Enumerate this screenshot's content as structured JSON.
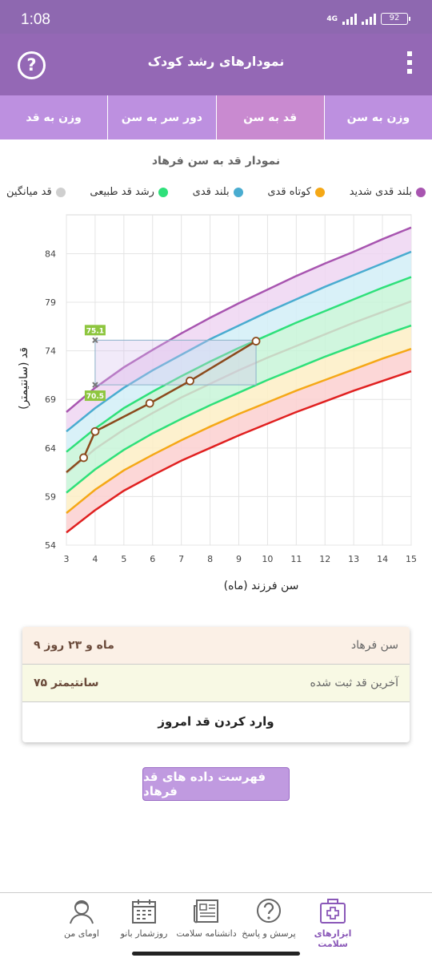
{
  "status_bar": {
    "time": "1:08",
    "network": "4G",
    "battery": "92"
  },
  "app_bar": {
    "title": "نمودارهای رشد کودک",
    "help_icon": "help-circle-icon",
    "menu_icon": "more-vertical-icon"
  },
  "tabs": [
    {
      "label": "وزن به سن",
      "active": false
    },
    {
      "label": "قد به سن",
      "active": true
    },
    {
      "label": "دور سر به سن",
      "active": false
    },
    {
      "label": "وزن به قد",
      "active": false
    }
  ],
  "legend": [
    {
      "label": "بلند قدی شدید",
      "color": "#a855b0"
    },
    {
      "label": "کوتاه قدی",
      "color": "#f5a816"
    },
    {
      "label": "بلند قدی",
      "color": "#49acd0"
    },
    {
      "label": "رشد قد طبیعی",
      "color": "#2ee07a"
    },
    {
      "label": "قد میانگین",
      "color": "#cfcfcf"
    }
  ],
  "chart_data": {
    "type": "line",
    "title": "نمودار قد به سن فرهاد",
    "xlabel": "سن فرزند (ماه)",
    "ylabel": "قد (سانتیمتر)",
    "xlim": [
      3,
      15
    ],
    "ylim": [
      54,
      88
    ],
    "x_ticks": [
      "3",
      "4",
      "5",
      "6",
      "7",
      "8",
      "9",
      "10",
      "11",
      "12",
      "13",
      "14",
      "15"
    ],
    "y_ticks": [
      "54",
      "59",
      "64",
      "69",
      "74",
      "79",
      "84"
    ],
    "grid": true,
    "reference_curves": [
      {
        "name": "+3SD",
        "color": "#a855b0",
        "values": [
          67.7,
          70.2,
          72.3,
          74.1,
          75.8,
          77.4,
          78.9,
          80.3,
          81.7,
          83.0,
          84.2,
          85.5,
          86.7
        ]
      },
      {
        "name": "+2SD",
        "color": "#49acd0",
        "values": [
          65.7,
          68.1,
          70.2,
          72.0,
          73.6,
          75.2,
          76.6,
          78.0,
          79.3,
          80.6,
          81.8,
          83.0,
          84.2
        ]
      },
      {
        "name": "+1SD",
        "color": "#2ee07a",
        "values": [
          63.6,
          66.0,
          68.1,
          69.8,
          71.4,
          72.9,
          74.3,
          75.6,
          76.9,
          78.1,
          79.3,
          80.5,
          81.6
        ]
      },
      {
        "name": "median",
        "color": "#c8d6c4",
        "values": [
          61.4,
          63.9,
          65.9,
          67.6,
          69.2,
          70.6,
          72.0,
          73.3,
          74.5,
          75.7,
          76.9,
          78.0,
          79.1
        ]
      },
      {
        "name": "-1SD",
        "color": "#2ee07a",
        "values": [
          59.4,
          61.8,
          63.8,
          65.5,
          67.0,
          68.4,
          69.7,
          71.0,
          72.2,
          73.4,
          74.5,
          75.6,
          76.6
        ]
      },
      {
        "name": "-2SD",
        "color": "#f5a816",
        "values": [
          57.3,
          59.7,
          61.7,
          63.3,
          64.8,
          66.2,
          67.5,
          68.7,
          69.9,
          71.0,
          72.1,
          73.2,
          74.2
        ]
      },
      {
        "name": "-3SD",
        "color": "#e02020",
        "values": [
          55.3,
          57.6,
          59.6,
          61.2,
          62.7,
          64.0,
          65.3,
          66.5,
          67.7,
          68.8,
          69.9,
          70.9,
          71.9
        ]
      }
    ],
    "bands": [
      {
        "between": [
          "+3SD",
          "+2SD"
        ],
        "color": "#efd6f2"
      },
      {
        "between": [
          "+2SD",
          "+1SD"
        ],
        "color": "#d2eef7"
      },
      {
        "between": [
          "+1SD",
          "-1SD"
        ],
        "color": "#c8f5d8"
      },
      {
        "between": [
          "-1SD",
          "-2SD"
        ],
        "color": "#fdefc6"
      },
      {
        "between": [
          "-2SD",
          "-3SD"
        ],
        "color": "#fbd0d0"
      }
    ],
    "series": [
      {
        "color": "#8b4a1c",
        "x": [
          3.0,
          3.6,
          4.0,
          5.9,
          7.3,
          9.6
        ],
        "y": [
          61.5,
          63.0,
          65.7,
          68.6,
          70.9,
          75.0
        ]
      }
    ],
    "range_box": {
      "x": [
        4.0,
        9.6
      ],
      "y": [
        70.5,
        75.1
      ]
    },
    "range_markers": [
      {
        "x": 4.0,
        "y": 75.1,
        "label": "75.1"
      },
      {
        "x": 4.0,
        "y": 70.5,
        "label": "70.5"
      }
    ]
  },
  "info": {
    "age_label": "سن فرهاد",
    "age_value": "۹ ماه و ۲۳ روز",
    "height_label": "آخرین قد ثبت شده",
    "height_value": "۷۵ سانتیمتر",
    "enter_button": "وارد کردن قد امروز"
  },
  "list_button": "فهرست داده های قد فرهاد",
  "bottom_nav": [
    {
      "label": "ابزارهای سلامت",
      "icon": "first-aid-kit-icon",
      "active": true
    },
    {
      "label": "پرسش و پاسخ",
      "icon": "question-bubble-icon",
      "active": false
    },
    {
      "label": "دانشنامه سلامت",
      "icon": "newspaper-icon",
      "active": false
    },
    {
      "label": "روزشمار بانو",
      "icon": "calendar-icon",
      "active": false
    },
    {
      "label": "اومای من",
      "icon": "user-avatar-icon",
      "active": false
    }
  ]
}
